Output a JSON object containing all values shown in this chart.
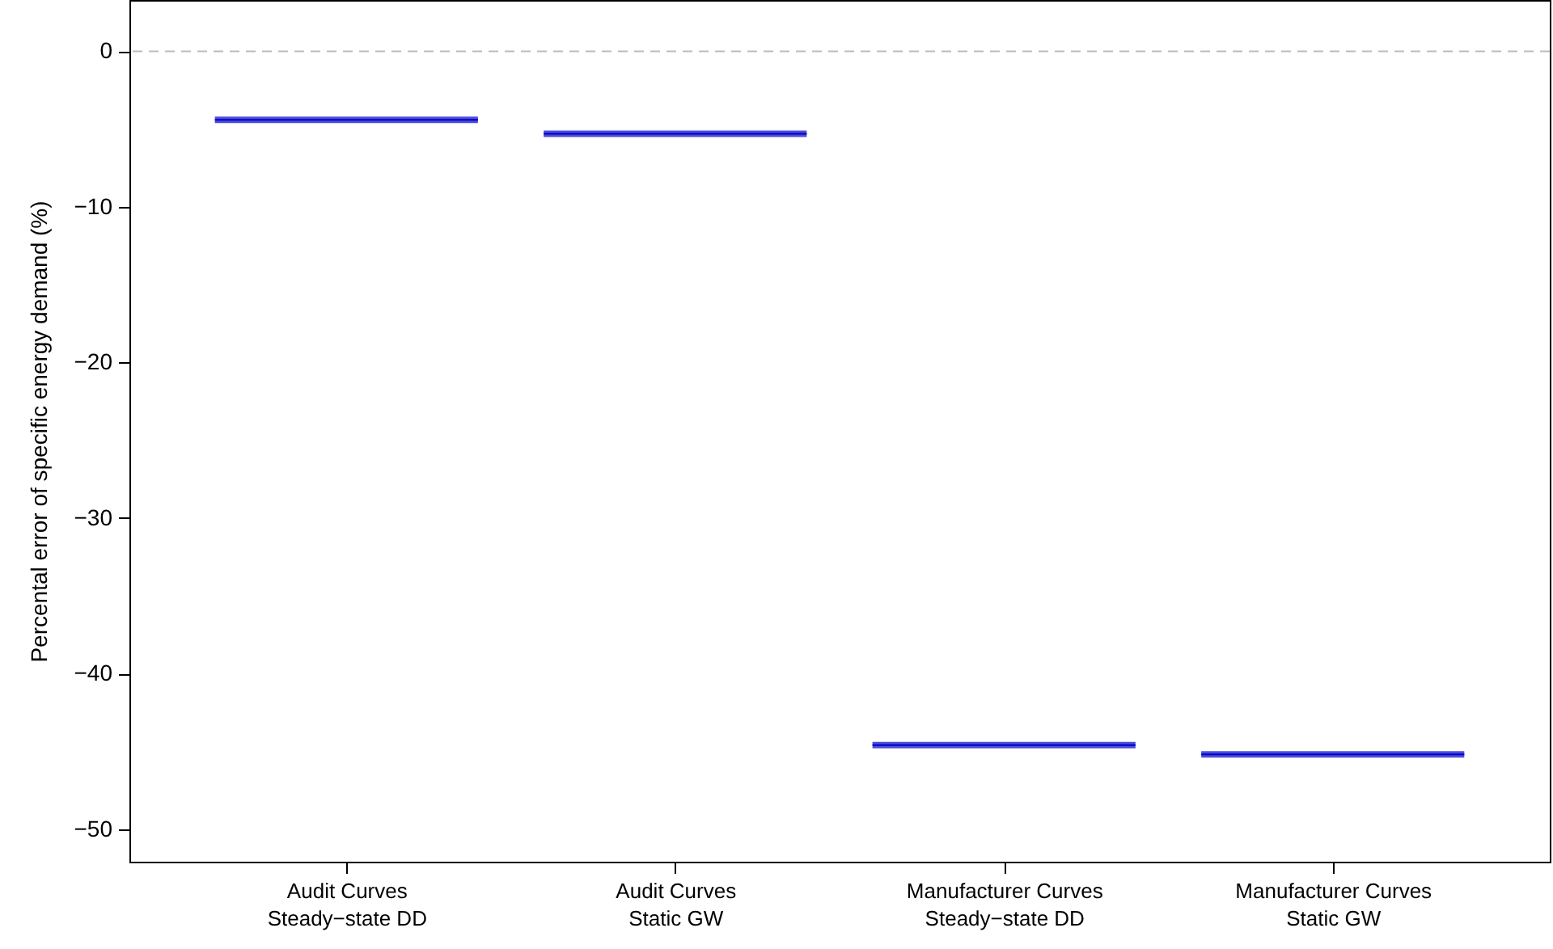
{
  "chart_data": {
    "type": "box",
    "ylabel": "Percental error of specific energy demand (%)",
    "categories": [
      "Audit Curves\nSteady−state DD",
      "Audit Curves\nStatic GW",
      "Manufacturer Curves\nSteady−state DD",
      "Manufacturer Curves\nStatic GW"
    ],
    "boxes": [
      {
        "low": -4.4,
        "q1": -4.4,
        "median": -4.4,
        "q3": -4.4,
        "high": -4.4
      },
      {
        "low": -5.3,
        "q1": -5.3,
        "median": -5.3,
        "q3": -5.3,
        "high": -5.3
      },
      {
        "low": -44.6,
        "q1": -44.6,
        "median": -44.6,
        "q3": -44.6,
        "high": -44.6
      },
      {
        "low": -45.2,
        "q1": -45.2,
        "median": -45.2,
        "q3": -45.2,
        "high": -45.2
      }
    ],
    "color": "#0000c8",
    "ylim": [
      -52.1,
      3.3
    ],
    "yticks": [
      0,
      {
        "value": -10,
        "label": "−10"
      },
      {
        "value": -20,
        "label": "−20"
      },
      {
        "value": -30,
        "label": "−30"
      },
      {
        "value": -40,
        "label": "−40"
      },
      {
        "value": -50,
        "label": "−50"
      }
    ],
    "ref_lines": [
      {
        "axis": "y",
        "value": 0,
        "color": "#bbbbbb",
        "line_style": "dashed"
      }
    ],
    "grid": false
  }
}
